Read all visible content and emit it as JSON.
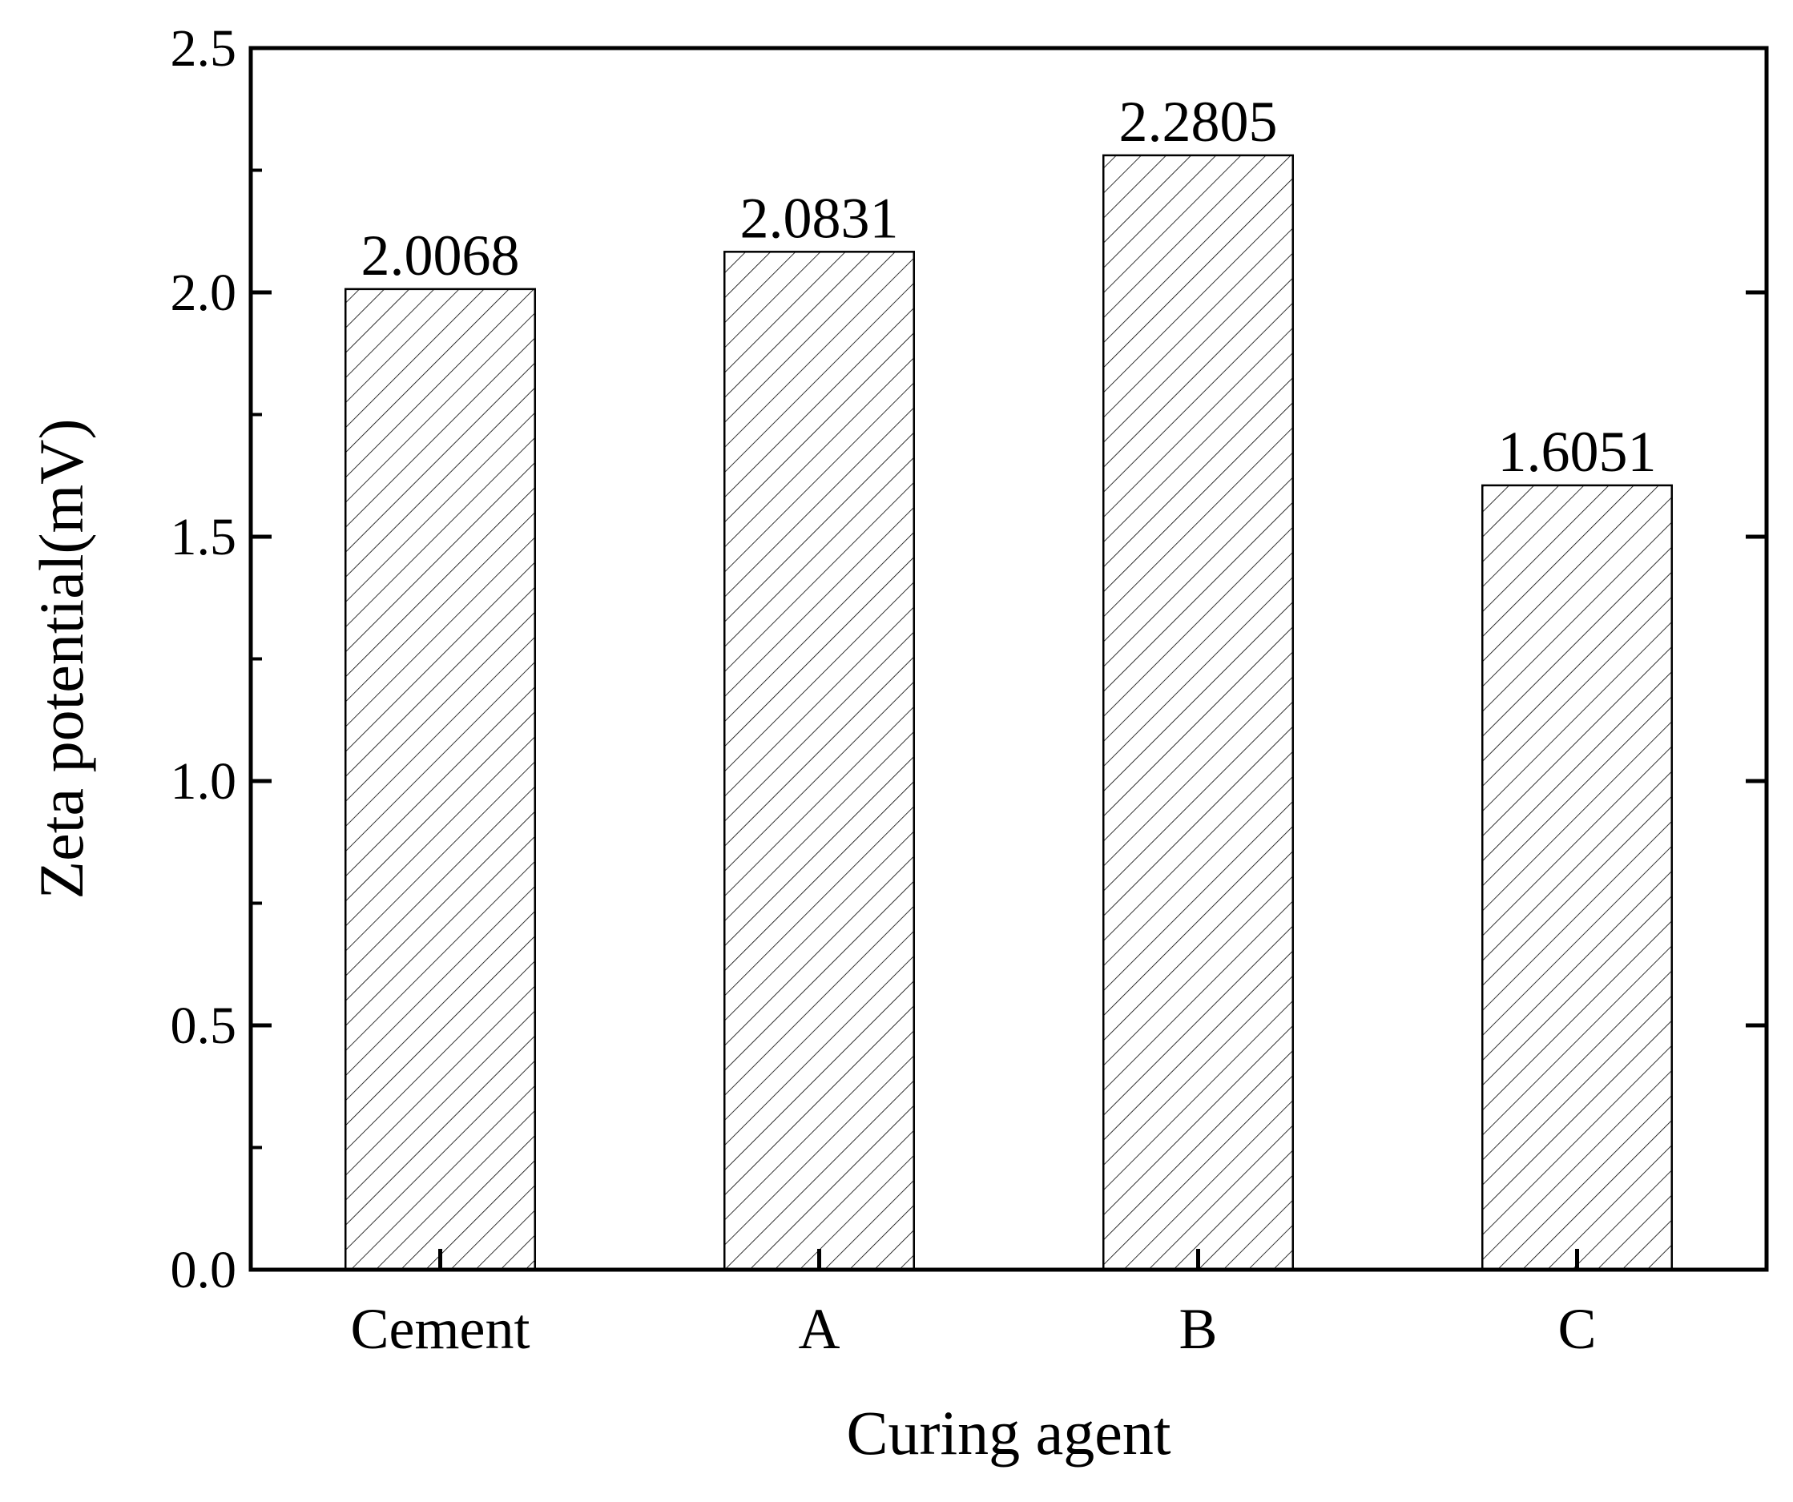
{
  "chart_data": {
    "type": "bar",
    "categories": [
      "Cement",
      "A",
      "B",
      "C"
    ],
    "values": [
      2.0068,
      2.0831,
      2.2805,
      1.6051
    ],
    "data_labels": [
      "2.0068",
      "2.0831",
      "2.2805",
      "1.6051"
    ],
    "xlabel": "Curing agent",
    "ylabel": "Zeta potential(mV)",
    "ylim": [
      0,
      2.5
    ],
    "yticks": [
      0.0,
      0.5,
      1.0,
      1.5,
      2.0,
      2.5
    ],
    "ytick_labels": [
      "0.0",
      "0.5",
      "1.0",
      "1.5",
      "2.0",
      "2.5"
    ],
    "bar_fill": "hatched diagonal",
    "bar_color": "#000000",
    "grid": false,
    "legend": "none"
  }
}
